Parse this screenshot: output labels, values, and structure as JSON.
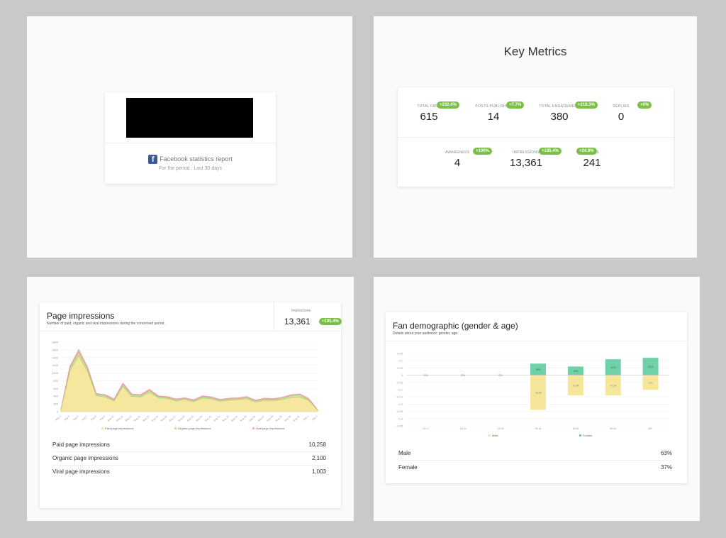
{
  "cover": {
    "report_title": "Facebook statistics report",
    "period": "For the period : Last 30 days",
    "fb_icon": "facebook-icon"
  },
  "key_metrics": {
    "title": "Key Metrics",
    "row1": [
      {
        "label": "TOTAL FANS",
        "value": "615",
        "badge": "+232.4%"
      },
      {
        "label": "POSTS PUBLISHED",
        "value": "14",
        "badge": "+7.7%"
      },
      {
        "label": "TOTAL ENGAGEMENT",
        "value": "380",
        "badge": "+219.3%"
      },
      {
        "label": "REPLIES",
        "value": "0",
        "badge": "+0%"
      }
    ],
    "row2": [
      {
        "label": "AWARENESS",
        "value": "4",
        "badge": "+100%"
      },
      {
        "label": "IMPRESSIONS",
        "value": "13,361",
        "badge": "+195.4%"
      },
      {
        "label": "CLICKS",
        "value": "241",
        "badge": "+24.9%"
      }
    ],
    "badge_color": "#7bbf48"
  },
  "impressions": {
    "title": "Page impressions",
    "subtitle": "Number of paid, organic and viral impressions during the concerned period.",
    "kpi_label": "Impressions",
    "kpi_value": "13,361",
    "kpi_badge": "+195.4%",
    "legend": [
      "Paid page impressions",
      "Organic page impressions",
      "Viral page impressions"
    ],
    "summary": [
      {
        "label": "Paid page impressions",
        "value": "10,258"
      },
      {
        "label": "Organic page impressions",
        "value": "2,100"
      },
      {
        "label": "Viral page impressions",
        "value": "1,003"
      }
    ],
    "colors": {
      "paid": "#f5e69a",
      "organic": "#bde4a0",
      "viral": "#f4b8b8"
    }
  },
  "demographics": {
    "title": "Fan demographic (gender & age)",
    "subtitle": "Details about your audience: gender, age.",
    "legend": [
      "Male",
      "Female"
    ],
    "summary": [
      {
        "label": "Male",
        "value": "63%"
      },
      {
        "label": "Female",
        "value": "37%"
      }
    ],
    "colors": {
      "male": "#f5e69a",
      "female": "#6fd1a7"
    }
  },
  "chart_data": [
    {
      "type": "area",
      "title": "",
      "x": [
        "Aug 4",
        "Aug 5",
        "Aug 6",
        "Aug 7",
        "Aug 8",
        "Aug 9",
        "Aug 10",
        "Aug 11",
        "Aug 12",
        "Aug 13",
        "Aug 14",
        "Aug 15",
        "Aug 16",
        "Aug 17",
        "Aug 18",
        "Aug 19",
        "Aug 20",
        "Aug 21",
        "Aug 22",
        "Aug 23",
        "Aug 24",
        "Aug 25",
        "Aug 26",
        "Aug 27",
        "Aug 28",
        "Aug 29",
        "Aug 30",
        "Aug 31",
        "Sep 1",
        "Sep 2"
      ],
      "yticks": [
        0,
        200,
        400,
        600,
        800,
        1000,
        1200,
        1400,
        1600,
        1800
      ],
      "ylim": [
        0,
        1800
      ],
      "series": [
        {
          "name": "Paid page impressions",
          "values": [
            50,
            1050,
            1450,
            1050,
            420,
            380,
            280,
            650,
            400,
            380,
            500,
            360,
            340,
            280,
            310,
            260,
            350,
            330,
            270,
            300,
            310,
            330,
            250,
            300,
            290,
            310,
            370,
            380,
            290,
            40
          ]
        },
        {
          "name": "Organic page impressions",
          "values": [
            10,
            80,
            100,
            70,
            30,
            40,
            30,
            60,
            40,
            40,
            50,
            30,
            30,
            30,
            30,
            30,
            40,
            30,
            30,
            30,
            30,
            40,
            30,
            30,
            30,
            40,
            50,
            60,
            30,
            10
          ]
        },
        {
          "name": "Viral page impressions",
          "values": [
            0,
            40,
            60,
            40,
            20,
            20,
            20,
            30,
            20,
            20,
            30,
            20,
            20,
            20,
            20,
            20,
            20,
            20,
            20,
            20,
            20,
            20,
            20,
            20,
            20,
            20,
            20,
            20,
            20,
            0
          ]
        }
      ]
    },
    {
      "type": "bar",
      "title": "",
      "categories": [
        "13-17",
        "18-24",
        "25-34",
        "35-44",
        "45-54",
        "55-64",
        "65+"
      ],
      "yticks": [
        0.15,
        0.1,
        0.05,
        0,
        -0.05,
        -0.1,
        -0.15,
        -0.2,
        -0.25,
        -0.3,
        -0.35
      ],
      "ylim": [
        -0.35,
        0.15
      ],
      "series": [
        {
          "name": "Female",
          "values": [
            0,
            0,
            0,
            0.08,
            0.06,
            0.11,
            0.12
          ],
          "labels": [
            "0%",
            "0%",
            "0%",
            "8%",
            "6%",
            "11%",
            "12%"
          ]
        },
        {
          "name": "Male",
          "values": [
            0,
            0,
            0,
            -0.24,
            -0.14,
            -0.14,
            -0.1
          ],
          "labels": [
            "",
            "",
            "",
            "-0.24",
            "-0.14",
            "-0.14",
            "-0.1"
          ]
        }
      ]
    }
  ]
}
